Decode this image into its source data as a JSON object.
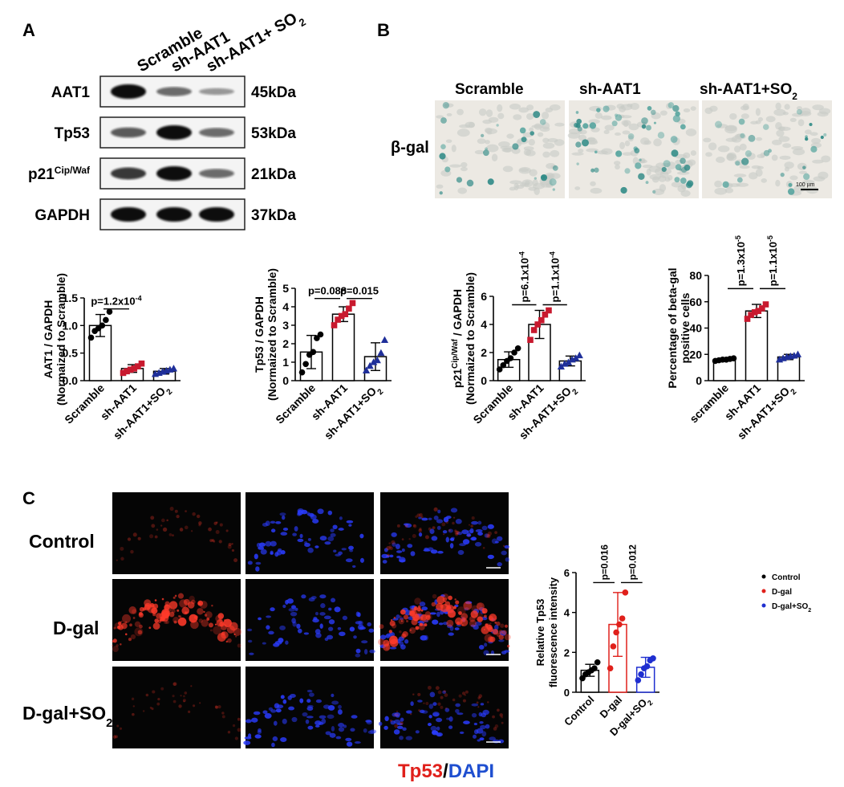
{
  "panels": {
    "a": "A",
    "b": "B",
    "c": "C"
  },
  "blot": {
    "lanes": [
      "Scramble",
      "sh-AAT1",
      "sh-AAT1+ SO",
      "2"
    ],
    "rows": [
      {
        "label": "AAT1",
        "sup": "",
        "kda": "45kDa",
        "bands": [
          1.0,
          0.45,
          0.2
        ]
      },
      {
        "label": "Tp53",
        "sup": "",
        "kda": "53kDa",
        "bands": [
          0.55,
          1.0,
          0.45
        ]
      },
      {
        "label": "p21",
        "sup": "Cip/Waf",
        "kda": "21kDa",
        "bands": [
          0.75,
          1.0,
          0.45
        ]
      },
      {
        "label": "GAPDH",
        "sup": "",
        "kda": "37kDa",
        "bands": [
          1.0,
          1.0,
          1.0
        ]
      }
    ]
  },
  "micro": {
    "titles": [
      "Scramble",
      "sh-AAT1",
      "sh-AAT1+SO",
      "2"
    ],
    "row_label": "β-gal",
    "scale_label": "100 µm",
    "stain_density": [
      0.35,
      1.0,
      0.3
    ]
  },
  "fluor": {
    "rows": [
      "Control",
      "D-gal",
      "D-gal+SO",
      "2"
    ],
    "caption": {
      "tp53": "Tp53",
      "slash": "/",
      "dapi": "DAPI"
    },
    "tp53_intensity": [
      0.2,
      1.0,
      0.15
    ]
  },
  "chart_data": [
    {
      "type": "bar",
      "categories": [
        "Scramble",
        "sh-AAT1",
        "sh-AAT1+SO2"
      ],
      "values": [
        1.0,
        0.22,
        0.17
      ],
      "errors": [
        0.2,
        0.07,
        0.05
      ],
      "points": [
        [
          0.78,
          0.9,
          0.95,
          1.0,
          1.1,
          1.25
        ],
        [
          0.14,
          0.17,
          0.2,
          0.22,
          0.26,
          0.31
        ],
        [
          0.12,
          0.14,
          0.16,
          0.18,
          0.2,
          0.22
        ]
      ],
      "marker": [
        "circle",
        "square",
        "triangle"
      ],
      "colors": [
        "#000000",
        "#c8192e",
        "#1f2f9a"
      ],
      "ylim": [
        0,
        1.5
      ],
      "yticks": [
        0.0,
        0.5,
        1.0,
        1.5
      ],
      "ytick_labels": [
        "0.0",
        "0.5",
        "1.0",
        "1.5"
      ],
      "ylabel": "AAT1 / GAPDH",
      "ylabel2": "(Normaized to Scramble)",
      "xtick_labels": [
        "Scramble",
        "sh-AAT1",
        "sh-AAT1+SO",
        "2"
      ],
      "brackets": [
        {
          "from": 0,
          "to": 1,
          "label": "p=1.2x10",
          "exp": "-4",
          "y": 1.3
        }
      ]
    },
    {
      "type": "bar",
      "categories": [
        "Scramble",
        "sh-AAT1",
        "sh-AAT1+SO2"
      ],
      "values": [
        1.55,
        3.6,
        1.3
      ],
      "errors": [
        0.9,
        0.4,
        0.75
      ],
      "points": [
        [
          0.45,
          0.9,
          1.4,
          1.55,
          2.3,
          2.5
        ],
        [
          3.0,
          3.3,
          3.5,
          3.6,
          3.9,
          4.2
        ],
        [
          0.55,
          0.8,
          1.0,
          1.1,
          1.5,
          2.2
        ]
      ],
      "marker": [
        "circle",
        "square",
        "triangle"
      ],
      "colors": [
        "#000000",
        "#c8192e",
        "#1f2f9a"
      ],
      "ylim": [
        0,
        5
      ],
      "yticks": [
        0,
        1,
        2,
        3,
        4,
        5
      ],
      "ytick_labels": [
        "0",
        "1",
        "2",
        "3",
        "4",
        "5"
      ],
      "ylabel": "Tp53 / GAPDH",
      "ylabel2": "(Normaized to Scramble)",
      "xtick_labels": [
        "Scramble",
        "sh-AAT1",
        "sh-AAT1+SO",
        "2"
      ],
      "brackets": [
        {
          "from": 0,
          "to": 1,
          "label": "p=0.088",
          "exp": "",
          "y": 4.45
        },
        {
          "from": 1,
          "to": 2,
          "label": "p=0.015",
          "exp": "",
          "y": 4.45
        }
      ]
    },
    {
      "type": "bar",
      "categories": [
        "Scramble",
        "sh-AAT1",
        "sh-AAT1+SO2"
      ],
      "values": [
        1.5,
        4.0,
        1.4
      ],
      "errors": [
        0.55,
        1.0,
        0.35
      ],
      "points": [
        [
          0.8,
          1.1,
          1.4,
          1.6,
          2.0,
          2.3
        ],
        [
          2.9,
          3.6,
          4.0,
          4.3,
          4.7,
          5.0
        ],
        [
          1.0,
          1.2,
          1.3,
          1.5,
          1.6,
          1.8
        ]
      ],
      "marker": [
        "circle",
        "square",
        "triangle"
      ],
      "colors": [
        "#000000",
        "#c8192e",
        "#1f2f9a"
      ],
      "ylim": [
        0,
        6
      ],
      "yticks": [
        0,
        2,
        4,
        6
      ],
      "ytick_labels": [
        "0",
        "2",
        "4",
        "6"
      ],
      "ylabel": "p21",
      "ylabel_sup": "Cip/Waf",
      "ylabel_rest": " / GAPDH",
      "ylabel2": "(Normaized to Scramble)",
      "xtick_labels": [
        "Scramble",
        "sh-AAT1",
        "sh-AAT1+SO",
        "2"
      ],
      "brackets": [
        {
          "from": 0,
          "to": 1,
          "label": "p=6.1x10",
          "exp": "-4",
          "y": 5.4,
          "vertical": true
        },
        {
          "from": 1,
          "to": 2,
          "label": "p=1.1x10",
          "exp": "-4",
          "y": 5.4,
          "vertical": true
        }
      ]
    },
    {
      "type": "bar",
      "categories": [
        "scramble",
        "sh-AAT1",
        "sh-AAT1+SO2"
      ],
      "values": [
        16,
        53,
        18
      ],
      "errors": [
        1,
        5,
        2
      ],
      "points": [
        [
          15,
          15.5,
          16,
          16,
          16.5,
          17
        ],
        [
          47,
          50,
          52,
          53,
          55,
          58
        ],
        [
          16,
          17,
          18,
          18.5,
          19,
          20
        ]
      ],
      "marker": [
        "circle",
        "square",
        "triangle"
      ],
      "colors": [
        "#000000",
        "#c8192e",
        "#1f2f9a"
      ],
      "ylim": [
        0,
        80
      ],
      "yticks": [
        0,
        20,
        40,
        60,
        80
      ],
      "ytick_labels": [
        "0",
        "20",
        "40",
        "60",
        "80"
      ],
      "ylabel": "Percentage of beta-gal",
      "ylabel2": "positive cells",
      "xtick_labels": [
        "scramble",
        "sh-AAT1",
        "sh-AAT1+SO",
        "2"
      ],
      "brackets": [
        {
          "from": 0,
          "to": 1,
          "label": "p=1.3x10",
          "exp": "-5",
          "y": 70,
          "vertical": true
        },
        {
          "from": 1,
          "to": 2,
          "label": "p=1.1x10",
          "exp": "-5",
          "y": 70,
          "vertical": true
        }
      ]
    },
    {
      "type": "bar",
      "categories": [
        "Control",
        "D-gal",
        "D-gal+SO2"
      ],
      "values": [
        1.1,
        3.4,
        1.25
      ],
      "errors": [
        0.3,
        1.6,
        0.5
      ],
      "points": [
        [
          0.7,
          0.9,
          1.0,
          1.1,
          1.2,
          1.5
        ],
        [
          1.2,
          2.3,
          3.0,
          3.4,
          3.7,
          5.0
        ],
        [
          0.6,
          0.9,
          1.2,
          1.3,
          1.6,
          1.7
        ]
      ],
      "marker": [
        "circle",
        "circle",
        "circle"
      ],
      "hollow_bars": true,
      "colors": [
        "#000000",
        "#e0201b",
        "#1f2fd0"
      ],
      "ylim": [
        0,
        6
      ],
      "yticks": [
        0,
        2,
        4,
        6
      ],
      "ytick_labels": [
        "0",
        "2",
        "4",
        "6"
      ],
      "ylabel": "Relative Tp53",
      "ylabel2": "fluorescence intensity",
      "xtick_labels": [
        "Control",
        "D-gal",
        "D-gal+SO",
        "2"
      ],
      "brackets": [
        {
          "from": 0,
          "to": 1,
          "label": "p=0.016",
          "exp": "",
          "y": 5.5,
          "vertical": true
        },
        {
          "from": 1,
          "to": 2,
          "label": "p=0.012",
          "exp": "",
          "y": 5.5,
          "vertical": true
        }
      ],
      "legend": [
        {
          "label": "Control",
          "color": "#000000"
        },
        {
          "label": "D-gal",
          "color": "#e0201b"
        },
        {
          "label": "D-gal+SO",
          "sub": "2",
          "color": "#1f2fd0"
        }
      ],
      "legend_position": "right"
    }
  ]
}
